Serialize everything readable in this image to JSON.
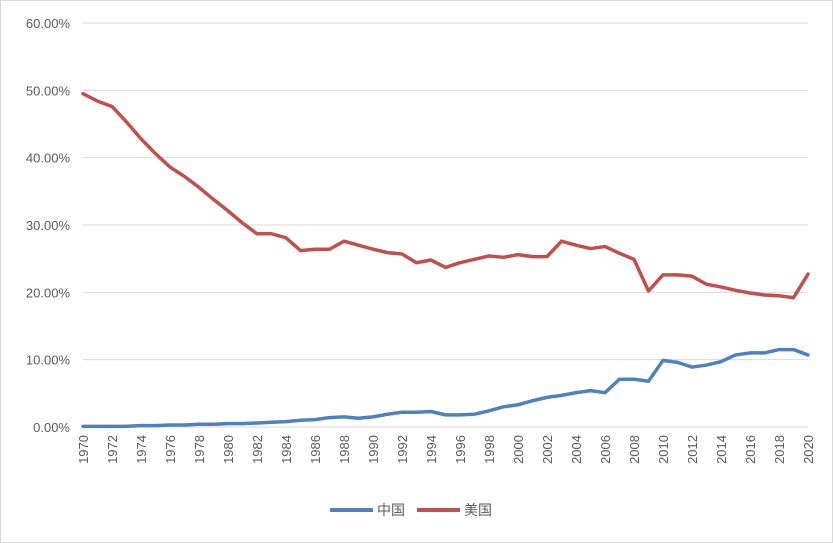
{
  "chart_data": {
    "type": "line",
    "title": "",
    "xlabel": "",
    "ylabel": "",
    "x": [
      1970,
      1971,
      1972,
      1973,
      1974,
      1975,
      1976,
      1977,
      1978,
      1979,
      1980,
      1981,
      1982,
      1983,
      1984,
      1985,
      1986,
      1987,
      1988,
      1989,
      1990,
      1991,
      1992,
      1993,
      1994,
      1995,
      1996,
      1997,
      1998,
      1999,
      2000,
      2001,
      2002,
      2003,
      2004,
      2005,
      2006,
      2007,
      2008,
      2009,
      2010,
      2011,
      2012,
      2013,
      2014,
      2015,
      2016,
      2017,
      2018,
      2019,
      2020
    ],
    "x_tick_labels": [
      "1970",
      "1972",
      "1974",
      "1976",
      "1978",
      "1980",
      "1982",
      "1984",
      "1986",
      "1988",
      "1990",
      "1992",
      "1994",
      "1996",
      "1998",
      "2000",
      "2002",
      "2004",
      "2006",
      "2008",
      "2010",
      "2012",
      "2014",
      "2016",
      "2018",
      "2020"
    ],
    "y_tick_labels": [
      "0.00%",
      "10.00%",
      "20.00%",
      "30.00%",
      "40.00%",
      "50.00%",
      "60.00%"
    ],
    "ylim": [
      0,
      60
    ],
    "y_unit": "%",
    "grid": true,
    "legend_position": "bottom",
    "series": [
      {
        "name": "中国",
        "color": "#4f81bd",
        "values": [
          0.1,
          0.1,
          0.1,
          0.1,
          0.2,
          0.2,
          0.3,
          0.3,
          0.4,
          0.4,
          0.5,
          0.5,
          0.6,
          0.7,
          0.8,
          1.0,
          1.1,
          1.4,
          1.5,
          1.3,
          1.5,
          1.9,
          2.2,
          2.2,
          2.3,
          1.8,
          1.8,
          1.9,
          2.4,
          3.0,
          3.3,
          3.9,
          4.4,
          4.7,
          5.1,
          5.4,
          5.1,
          7.1,
          7.1,
          6.8,
          9.9,
          9.6,
          8.9,
          9.2,
          9.7,
          10.7,
          11.0,
          11.0,
          11.5,
          11.5,
          10.7
        ]
      },
      {
        "name": "美国",
        "color": "#c0504d",
        "values": [
          49.5,
          48.4,
          47.6,
          45.3,
          42.8,
          40.6,
          38.6,
          37.2,
          35.6,
          33.8,
          32.1,
          30.3,
          28.7,
          28.7,
          28.1,
          26.2,
          26.4,
          26.4,
          27.6,
          27.0,
          26.4,
          25.9,
          25.7,
          24.4,
          24.8,
          23.7,
          24.4,
          24.9,
          25.4,
          25.2,
          25.6,
          25.3,
          25.3,
          27.6,
          27.0,
          26.5,
          26.8,
          25.8,
          24.9,
          20.2,
          22.6,
          22.6,
          22.4,
          21.2,
          20.8,
          20.3,
          19.9,
          19.6,
          19.5,
          19.2,
          22.7
        ]
      }
    ]
  }
}
